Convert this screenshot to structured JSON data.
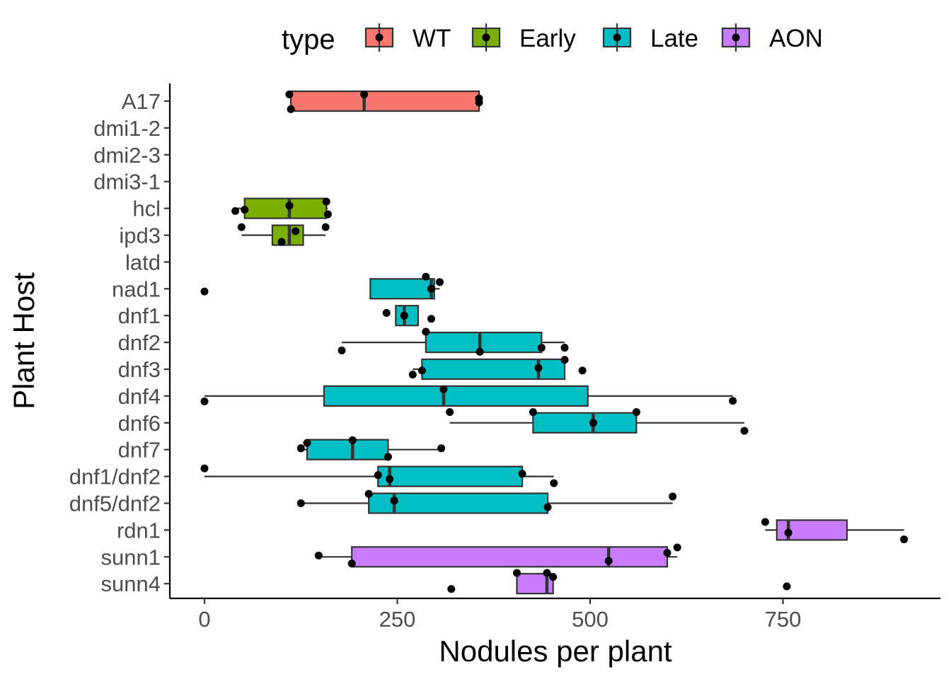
{
  "chart_data": {
    "type": "boxplot",
    "orientation": "horizontal",
    "xlabel": "Nodules per plant",
    "ylabel": "Plant Host",
    "xlim": [
      -45,
      955
    ],
    "xticks": [
      0,
      250,
      500,
      750
    ],
    "grid": false,
    "legend": {
      "title": "type",
      "position": "top",
      "entries": [
        {
          "name": "WT",
          "color": "#F8766D"
        },
        {
          "name": "Early",
          "color": "#7CAE00"
        },
        {
          "name": "Late",
          "color": "#00BFC4"
        },
        {
          "name": "AON",
          "color": "#C77CFF"
        }
      ]
    },
    "categories": [
      "A17",
      "dmi1-2",
      "dmi2-3",
      "dmi3-1",
      "hcl",
      "ipd3",
      "latd",
      "nad1",
      "dnf1",
      "dnf2",
      "dnf3",
      "dnf4",
      "dnf6",
      "dnf7",
      "dnf1/dnf2",
      "dnf5/dnf2",
      "rdn1",
      "sunn1",
      "sunn4"
    ],
    "boxes": [
      {
        "host": "A17",
        "type": "WT",
        "whisker_low": 112,
        "q1": 112,
        "median": 207,
        "q3": 356,
        "whisker_high": 356
      },
      {
        "host": "hcl",
        "type": "Early",
        "whisker_low": 40,
        "q1": 52,
        "median": 110,
        "q3": 158,
        "whisker_high": 160
      },
      {
        "host": "ipd3",
        "type": "Early",
        "whisker_low": 48,
        "q1": 88,
        "median": 110,
        "q3": 128,
        "whisker_high": 157
      },
      {
        "host": "nad1",
        "type": "Late",
        "whisker_low": 215,
        "q1": 215,
        "median": 294,
        "q3": 298,
        "whisker_high": 305
      },
      {
        "host": "dnf1",
        "type": "Late",
        "whisker_low": 248,
        "q1": 248,
        "median": 259,
        "q3": 277,
        "whisker_high": 277
      },
      {
        "host": "dnf2",
        "type": "Late",
        "whisker_low": 178,
        "q1": 287,
        "median": 357,
        "q3": 437,
        "whisker_high": 467
      },
      {
        "host": "dnf3",
        "type": "Late",
        "whisker_low": 270,
        "q1": 282,
        "median": 433,
        "q3": 467,
        "whisker_high": 467
      },
      {
        "host": "dnf4",
        "type": "Late",
        "whisker_low": 0,
        "q1": 155,
        "median": 310,
        "q3": 497,
        "whisker_high": 685
      },
      {
        "host": "dnf6",
        "type": "Late",
        "whisker_low": 318,
        "q1": 426,
        "median": 504,
        "q3": 560,
        "whisker_high": 700
      },
      {
        "host": "dnf7",
        "type": "Late",
        "whisker_low": 125,
        "q1": 133,
        "median": 192,
        "q3": 238,
        "whisker_high": 307
      },
      {
        "host": "dnf1/dnf2",
        "type": "Late",
        "whisker_low": 0,
        "q1": 225,
        "median": 240,
        "q3": 412,
        "whisker_high": 453
      },
      {
        "host": "dnf5/dnf2",
        "type": "Late",
        "whisker_low": 125,
        "q1": 213,
        "median": 246,
        "q3": 445,
        "whisker_high": 607
      },
      {
        "host": "rdn1",
        "type": "AON",
        "whisker_low": 727,
        "q1": 742,
        "median": 757,
        "q3": 833,
        "whisker_high": 907
      },
      {
        "host": "sunn1",
        "type": "AON",
        "whisker_low": 148,
        "q1": 191,
        "median": 524,
        "q3": 600,
        "whisker_high": 613
      },
      {
        "host": "sunn4",
        "type": "AON",
        "whisker_low": 405,
        "q1": 405,
        "median": 444,
        "q3": 452,
        "whisker_high": 452
      }
    ],
    "points": [
      {
        "host": "A17",
        "x": 110,
        "offset": -0.25
      },
      {
        "host": "A17",
        "x": 207,
        "offset": -0.25
      },
      {
        "host": "A17",
        "x": 356,
        "offset": -0.1
      },
      {
        "host": "A17",
        "x": 356,
        "offset": 0.05
      },
      {
        "host": "A17",
        "x": 112,
        "offset": 0.3
      },
      {
        "host": "hcl",
        "x": 158,
        "offset": -0.25
      },
      {
        "host": "hcl",
        "x": 110,
        "offset": -0.1
      },
      {
        "host": "hcl",
        "x": 52,
        "offset": 0.05
      },
      {
        "host": "hcl",
        "x": 40,
        "offset": 0.1
      },
      {
        "host": "hcl",
        "x": 160,
        "offset": 0.22
      },
      {
        "host": "ipd3",
        "x": 48,
        "offset": -0.3
      },
      {
        "host": "ipd3",
        "x": 157,
        "offset": -0.3
      },
      {
        "host": "ipd3",
        "x": 118,
        "offset": -0.15
      },
      {
        "host": "ipd3",
        "x": 100,
        "offset": 0.25
      },
      {
        "host": "nad1",
        "x": 0,
        "offset": 0.1
      },
      {
        "host": "nad1",
        "x": 287,
        "offset": -0.45
      },
      {
        "host": "nad1",
        "x": 305,
        "offset": -0.25
      },
      {
        "host": "nad1",
        "x": 294,
        "offset": 0.0
      },
      {
        "host": "dnf1",
        "x": 236,
        "offset": -0.1
      },
      {
        "host": "dnf1",
        "x": 259,
        "offset": 0.0
      },
      {
        "host": "dnf1",
        "x": 294,
        "offset": 0.12
      },
      {
        "host": "dnf2",
        "x": 287,
        "offset": -0.4
      },
      {
        "host": "dnf2",
        "x": 467,
        "offset": 0.2
      },
      {
        "host": "dnf2",
        "x": 437,
        "offset": 0.2
      },
      {
        "host": "dnf2",
        "x": 357,
        "offset": 0.35
      },
      {
        "host": "dnf2",
        "x": 178,
        "offset": 0.3
      },
      {
        "host": "dnf3",
        "x": 467,
        "offset": -0.35
      },
      {
        "host": "dnf3",
        "x": 490,
        "offset": 0.05
      },
      {
        "host": "dnf3",
        "x": 433,
        "offset": -0.05
      },
      {
        "host": "dnf3",
        "x": 282,
        "offset": 0.05
      },
      {
        "host": "dnf3",
        "x": 270,
        "offset": 0.2
      },
      {
        "host": "dnf4",
        "x": 310,
        "offset": -0.25
      },
      {
        "host": "dnf4",
        "x": 0,
        "offset": 0.2
      },
      {
        "host": "dnf4",
        "x": 685,
        "offset": 0.18
      },
      {
        "host": "dnf6",
        "x": 318,
        "offset": -0.4
      },
      {
        "host": "dnf6",
        "x": 426,
        "offset": -0.4
      },
      {
        "host": "dnf6",
        "x": 560,
        "offset": -0.4
      },
      {
        "host": "dnf6",
        "x": 504,
        "offset": 0.0
      },
      {
        "host": "dnf6",
        "x": 700,
        "offset": 0.3
      },
      {
        "host": "dnf7",
        "x": 192,
        "offset": -0.35
      },
      {
        "host": "dnf7",
        "x": 133,
        "offset": -0.25
      },
      {
        "host": "dnf7",
        "x": 125,
        "offset": -0.05
      },
      {
        "host": "dnf7",
        "x": 307,
        "offset": -0.05
      },
      {
        "host": "dnf7",
        "x": 238,
        "offset": 0.27
      },
      {
        "host": "dnf1/dnf2",
        "x": 0,
        "offset": -0.3
      },
      {
        "host": "dnf1/dnf2",
        "x": 412,
        "offset": -0.1
      },
      {
        "host": "dnf1/dnf2",
        "x": 225,
        "offset": -0.05
      },
      {
        "host": "dnf1/dnf2",
        "x": 240,
        "offset": 0.1
      },
      {
        "host": "dnf1/dnf2",
        "x": 453,
        "offset": 0.25
      },
      {
        "host": "dnf5/dnf2",
        "x": 213,
        "offset": -0.35
      },
      {
        "host": "dnf5/dnf2",
        "x": 607,
        "offset": -0.25
      },
      {
        "host": "dnf5/dnf2",
        "x": 246,
        "offset": -0.1
      },
      {
        "host": "dnf5/dnf2",
        "x": 125,
        "offset": 0.0
      },
      {
        "host": "dnf5/dnf2",
        "x": 445,
        "offset": 0.15
      },
      {
        "host": "rdn1",
        "x": 727,
        "offset": -0.3
      },
      {
        "host": "rdn1",
        "x": 757,
        "offset": 0.1
      },
      {
        "host": "rdn1",
        "x": 907,
        "offset": 0.35
      },
      {
        "host": "sunn1",
        "x": 613,
        "offset": -0.35
      },
      {
        "host": "sunn1",
        "x": 600,
        "offset": -0.15
      },
      {
        "host": "sunn1",
        "x": 148,
        "offset": -0.05
      },
      {
        "host": "sunn1",
        "x": 524,
        "offset": 0.15
      },
      {
        "host": "sunn1",
        "x": 191,
        "offset": 0.25
      },
      {
        "host": "sunn4",
        "x": 405,
        "offset": -0.4
      },
      {
        "host": "sunn4",
        "x": 444,
        "offset": -0.4
      },
      {
        "host": "sunn4",
        "x": 452,
        "offset": -0.25
      },
      {
        "host": "sunn4",
        "x": 320,
        "offset": 0.2
      },
      {
        "host": "sunn4",
        "x": 755,
        "offset": 0.1
      }
    ]
  }
}
